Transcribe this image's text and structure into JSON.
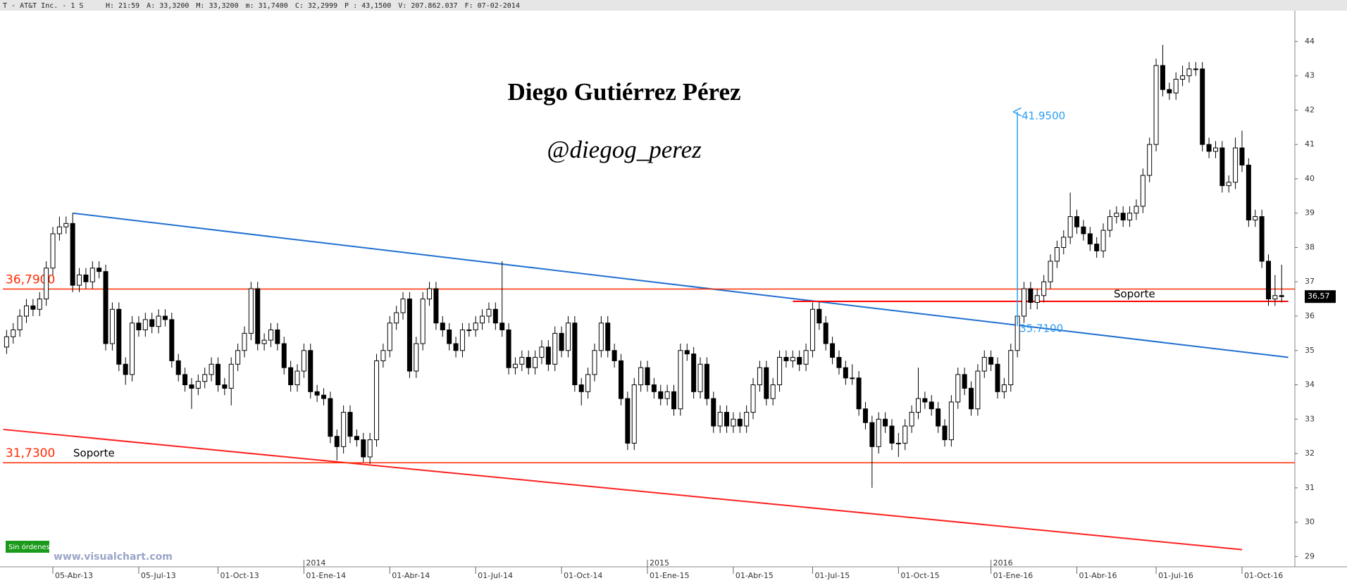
{
  "header": {
    "symbol": "T - AT&T Inc. -  1 S",
    "fields": [
      "H: 21:59",
      "A: 33,3200",
      "M: 33,3200",
      "m: 31,7400",
      "C: 32,2999",
      "P : 43,1500",
      "V: 207.862.037",
      "F: 07-02-2014"
    ]
  },
  "chart_data": {
    "type": "candlestick",
    "title": "Diego Gutiérrez Pérez",
    "subtitle": "@diegog_perez",
    "ylim": [
      28.7,
      44.9
    ],
    "yticks": [
      29,
      30,
      31,
      32,
      33,
      34,
      35,
      36,
      37,
      38,
      39,
      40,
      41,
      42,
      43,
      44
    ],
    "xlim": [
      -1,
      195
    ],
    "xticks": [
      {
        "value": 7,
        "label": "05-Abr-13"
      },
      {
        "value": 20,
        "label": "05-Jul-13"
      },
      {
        "value": 32,
        "label": "01-Oct-13"
      },
      {
        "value": 45,
        "label": "01-Ene-14"
      },
      {
        "value": 58,
        "label": "01-Abr-14"
      },
      {
        "value": 71,
        "label": "01-Jul-14"
      },
      {
        "value": 84,
        "label": "01-Oct-14"
      },
      {
        "value": 97,
        "label": "01-Ene-15"
      },
      {
        "value": 110,
        "label": "01-Abr-15"
      },
      {
        "value": 122,
        "label": "01-Jul-15"
      },
      {
        "value": 135,
        "label": "01-Oct-15"
      },
      {
        "value": 149,
        "label": "01-Ene-16"
      },
      {
        "value": 162,
        "label": "01-Abr-16"
      },
      {
        "value": 174,
        "label": "01-Jul-16"
      },
      {
        "value": 187,
        "label": "01-Oct-16"
      }
    ],
    "year_ticks": [
      {
        "value": 45,
        "label": "2014"
      },
      {
        "value": 97,
        "label": "2015"
      },
      {
        "value": 149,
        "label": "2016"
      }
    ],
    "up_color": "#ffffff",
    "down_color": "#000000",
    "candles": [
      [
        35.1,
        35.6,
        34.9,
        35.4
      ],
      [
        35.4,
        35.8,
        35.2,
        35.6
      ],
      [
        35.6,
        36.2,
        35.4,
        36.0
      ],
      [
        36.0,
        36.5,
        35.8,
        36.3
      ],
      [
        36.3,
        36.5,
        36.0,
        36.2
      ],
      [
        36.2,
        36.7,
        36.0,
        36.5
      ],
      [
        36.5,
        37.6,
        36.3,
        37.4
      ],
      [
        37.4,
        38.6,
        37.2,
        38.4
      ],
      [
        38.4,
        38.9,
        38.2,
        38.6
      ],
      [
        38.6,
        38.9,
        38.4,
        38.7
      ],
      [
        38.7,
        39.0,
        36.7,
        36.9
      ],
      [
        36.9,
        37.4,
        36.7,
        37.2
      ],
      [
        37.2,
        37.4,
        36.8,
        37.0
      ],
      [
        37.0,
        37.6,
        36.8,
        37.4
      ],
      [
        37.4,
        37.6,
        37.1,
        37.3
      ],
      [
        37.3,
        37.5,
        35.0,
        35.2
      ],
      [
        35.2,
        36.4,
        35.0,
        36.2
      ],
      [
        36.2,
        36.4,
        34.4,
        34.6
      ],
      [
        34.6,
        34.8,
        34.0,
        34.3
      ],
      [
        34.3,
        36.0,
        34.1,
        35.8
      ],
      [
        35.8,
        36.0,
        35.4,
        35.6
      ],
      [
        35.6,
        36.1,
        35.4,
        35.9
      ],
      [
        35.9,
        36.1,
        35.5,
        35.7
      ],
      [
        35.7,
        36.2,
        35.5,
        36.0
      ],
      [
        36.0,
        36.2,
        35.7,
        35.9
      ],
      [
        35.9,
        36.1,
        34.5,
        34.7
      ],
      [
        34.7,
        34.9,
        34.1,
        34.3
      ],
      [
        34.3,
        34.5,
        33.8,
        34.0
      ],
      [
        34.0,
        34.2,
        33.3,
        33.9
      ],
      [
        33.9,
        34.3,
        33.7,
        34.1
      ],
      [
        34.1,
        34.5,
        33.9,
        34.3
      ],
      [
        34.3,
        34.8,
        34.1,
        34.6
      ],
      [
        34.6,
        34.8,
        33.8,
        34.0
      ],
      [
        34.0,
        34.2,
        33.7,
        33.9
      ],
      [
        33.9,
        34.8,
        33.4,
        34.6
      ],
      [
        34.6,
        35.2,
        34.4,
        35.0
      ],
      [
        35.0,
        35.7,
        34.8,
        35.5
      ],
      [
        35.5,
        37.0,
        35.3,
        36.8
      ],
      [
        36.8,
        37.0,
        35.0,
        35.2
      ],
      [
        35.2,
        35.5,
        35.0,
        35.3
      ],
      [
        35.3,
        35.8,
        35.1,
        35.6
      ],
      [
        35.6,
        35.8,
        35.0,
        35.2
      ],
      [
        35.2,
        35.4,
        34.3,
        34.5
      ],
      [
        34.5,
        34.7,
        33.8,
        34.0
      ],
      [
        34.0,
        34.6,
        33.8,
        34.4
      ],
      [
        34.4,
        35.2,
        34.2,
        35.0
      ],
      [
        35.0,
        35.2,
        33.6,
        33.8
      ],
      [
        33.8,
        34.0,
        33.5,
        33.7
      ],
      [
        33.7,
        33.9,
        33.4,
        33.6
      ],
      [
        33.6,
        33.8,
        32.3,
        32.5
      ],
      [
        32.5,
        32.7,
        31.8,
        32.2
      ],
      [
        32.2,
        33.4,
        32.0,
        33.2
      ],
      [
        33.2,
        33.4,
        32.3,
        32.5
      ],
      [
        32.5,
        32.7,
        32.2,
        32.4
      ],
      [
        32.4,
        32.6,
        31.75,
        31.9
      ],
      [
        31.9,
        32.6,
        31.7,
        32.4
      ],
      [
        32.4,
        34.9,
        32.2,
        34.7
      ],
      [
        34.7,
        35.2,
        34.5,
        35.0
      ],
      [
        35.0,
        36.0,
        34.8,
        35.8
      ],
      [
        35.8,
        36.3,
        35.6,
        36.1
      ],
      [
        36.1,
        36.7,
        35.9,
        36.5
      ],
      [
        36.5,
        36.7,
        34.2,
        34.4
      ],
      [
        34.4,
        35.4,
        34.2,
        35.2
      ],
      [
        35.2,
        36.7,
        35.0,
        36.5
      ],
      [
        36.5,
        37.0,
        36.3,
        36.8
      ],
      [
        36.8,
        37.0,
        35.6,
        35.8
      ],
      [
        35.8,
        36.0,
        35.4,
        35.6
      ],
      [
        35.6,
        35.8,
        35.0,
        35.2
      ],
      [
        35.2,
        35.4,
        34.8,
        35.0
      ],
      [
        35.0,
        35.8,
        34.8,
        35.6
      ],
      [
        35.6,
        35.8,
        35.4,
        35.6
      ],
      [
        35.6,
        36.0,
        35.4,
        35.8
      ],
      [
        35.8,
        36.2,
        35.6,
        36.0
      ],
      [
        36.0,
        36.4,
        35.8,
        36.2
      ],
      [
        36.2,
        36.4,
        35.6,
        35.8
      ],
      [
        35.8,
        37.6,
        35.4,
        35.6
      ],
      [
        35.6,
        35.8,
        34.3,
        34.5
      ],
      [
        34.5,
        34.8,
        34.3,
        34.6
      ],
      [
        34.6,
        35.0,
        34.4,
        34.8
      ],
      [
        34.8,
        35.0,
        34.3,
        34.5
      ],
      [
        34.5,
        35.0,
        34.3,
        34.8
      ],
      [
        34.8,
        35.3,
        34.6,
        35.1
      ],
      [
        35.1,
        35.3,
        34.4,
        34.6
      ],
      [
        34.6,
        35.7,
        34.4,
        35.5
      ],
      [
        35.5,
        35.7,
        34.8,
        35.0
      ],
      [
        35.0,
        36.0,
        34.8,
        35.8
      ],
      [
        35.8,
        36.0,
        33.8,
        34.0
      ],
      [
        34.0,
        34.2,
        33.4,
        33.8
      ],
      [
        33.8,
        34.5,
        33.6,
        34.3
      ],
      [
        34.3,
        35.2,
        34.1,
        35.0
      ],
      [
        35.0,
        36.0,
        34.8,
        35.8
      ],
      [
        35.8,
        36.0,
        34.8,
        35.0
      ],
      [
        35.0,
        35.2,
        34.5,
        34.7
      ],
      [
        34.7,
        34.9,
        33.4,
        33.6
      ],
      [
        33.6,
        33.8,
        32.1,
        32.3
      ],
      [
        32.3,
        34.2,
        32.1,
        34.0
      ],
      [
        34.0,
        34.7,
        33.8,
        34.5
      ],
      [
        34.5,
        34.7,
        33.8,
        34.0
      ],
      [
        34.0,
        34.2,
        33.6,
        33.8
      ],
      [
        33.8,
        34.0,
        33.4,
        33.6
      ],
      [
        33.6,
        34.0,
        33.4,
        33.8
      ],
      [
        33.8,
        34.0,
        33.1,
        33.3
      ],
      [
        33.3,
        35.2,
        33.1,
        35.0
      ],
      [
        35.0,
        35.2,
        34.7,
        34.9
      ],
      [
        34.9,
        35.1,
        33.6,
        33.8
      ],
      [
        33.8,
        34.8,
        33.6,
        34.6
      ],
      [
        34.6,
        34.8,
        33.4,
        33.6
      ],
      [
        33.6,
        33.8,
        32.6,
        32.8
      ],
      [
        32.8,
        33.4,
        32.6,
        33.2
      ],
      [
        33.2,
        33.4,
        32.6,
        32.8
      ],
      [
        32.8,
        33.2,
        32.6,
        33.0
      ],
      [
        33.0,
        33.2,
        32.6,
        32.8
      ],
      [
        32.8,
        33.4,
        32.6,
        33.2
      ],
      [
        33.2,
        34.2,
        33.0,
        34.0
      ],
      [
        34.0,
        34.7,
        33.8,
        34.5
      ],
      [
        34.5,
        34.7,
        33.4,
        33.6
      ],
      [
        33.6,
        34.2,
        33.4,
        34.0
      ],
      [
        34.0,
        35.0,
        33.8,
        34.8
      ],
      [
        34.8,
        35.0,
        34.5,
        34.7
      ],
      [
        34.7,
        35.0,
        34.5,
        34.8
      ],
      [
        34.8,
        35.0,
        34.4,
        34.6
      ],
      [
        34.6,
        35.2,
        34.4,
        35.0
      ],
      [
        35.0,
        36.4,
        34.8,
        36.2
      ],
      [
        36.2,
        36.4,
        35.6,
        35.8
      ],
      [
        35.8,
        36.0,
        35.0,
        35.2
      ],
      [
        35.2,
        35.4,
        34.6,
        34.8
      ],
      [
        34.8,
        35.0,
        34.3,
        34.5
      ],
      [
        34.5,
        34.7,
        34.0,
        34.2
      ],
      [
        34.2,
        34.6,
        34.0,
        34.2
      ],
      [
        34.2,
        34.4,
        33.1,
        33.3
      ],
      [
        33.3,
        33.5,
        32.7,
        32.9
      ],
      [
        32.9,
        33.1,
        31.0,
        32.2
      ],
      [
        32.2,
        33.2,
        32.0,
        33.0
      ],
      [
        33.0,
        33.2,
        32.6,
        32.8
      ],
      [
        32.8,
        33.0,
        32.1,
        32.3
      ],
      [
        32.3,
        32.6,
        31.9,
        32.3
      ],
      [
        32.3,
        33.0,
        32.1,
        32.8
      ],
      [
        32.8,
        33.4,
        32.6,
        33.2
      ],
      [
        33.2,
        34.5,
        33.0,
        33.6
      ],
      [
        33.6,
        33.8,
        33.3,
        33.5
      ],
      [
        33.5,
        33.7,
        33.1,
        33.3
      ],
      [
        33.3,
        33.5,
        32.6,
        32.8
      ],
      [
        32.8,
        33.0,
        32.2,
        32.4
      ],
      [
        32.4,
        33.7,
        32.2,
        33.5
      ],
      [
        33.5,
        34.5,
        33.3,
        34.3
      ],
      [
        34.3,
        34.5,
        33.7,
        33.9
      ],
      [
        33.9,
        34.1,
        33.1,
        33.3
      ],
      [
        33.3,
        34.6,
        33.1,
        34.4
      ],
      [
        34.4,
        35.0,
        34.2,
        34.8
      ],
      [
        34.8,
        35.0,
        34.4,
        34.6
      ],
      [
        34.6,
        34.8,
        33.6,
        33.8
      ],
      [
        33.8,
        34.2,
        33.6,
        34.0
      ],
      [
        34.0,
        35.2,
        33.8,
        35.0
      ],
      [
        35.0,
        36.4,
        34.8,
        36.0
      ],
      [
        36.0,
        37.0,
        35.8,
        36.8
      ],
      [
        36.8,
        37.0,
        36.2,
        36.4
      ],
      [
        36.4,
        36.8,
        36.2,
        36.6
      ],
      [
        36.6,
        37.2,
        36.4,
        37.0
      ],
      [
        37.0,
        37.8,
        36.8,
        37.6
      ],
      [
        37.6,
        38.2,
        37.4,
        38.0
      ],
      [
        38.0,
        38.5,
        37.8,
        38.3
      ],
      [
        38.3,
        39.6,
        38.1,
        38.9
      ],
      [
        38.9,
        39.1,
        38.4,
        38.6
      ],
      [
        38.6,
        38.8,
        38.2,
        38.4
      ],
      [
        38.4,
        38.6,
        37.9,
        38.1
      ],
      [
        38.1,
        38.3,
        37.7,
        37.9
      ],
      [
        37.9,
        38.7,
        37.7,
        38.5
      ],
      [
        38.5,
        39.1,
        38.3,
        38.9
      ],
      [
        38.9,
        39.2,
        38.7,
        39.0
      ],
      [
        39.0,
        39.2,
        38.6,
        38.8
      ],
      [
        38.8,
        39.2,
        38.6,
        39.0
      ],
      [
        39.0,
        39.4,
        38.8,
        39.2
      ],
      [
        39.2,
        40.3,
        39.0,
        40.1
      ],
      [
        40.1,
        41.2,
        39.9,
        41.0
      ],
      [
        41.0,
        43.5,
        40.8,
        43.3
      ],
      [
        43.3,
        43.9,
        42.4,
        42.6
      ],
      [
        42.6,
        42.8,
        42.3,
        42.5
      ],
      [
        42.5,
        43.1,
        42.3,
        42.9
      ],
      [
        42.9,
        43.3,
        42.7,
        43.0
      ],
      [
        43.0,
        43.4,
        42.8,
        43.2
      ],
      [
        43.2,
        43.4,
        43.0,
        43.2
      ],
      [
        43.2,
        43.4,
        40.8,
        41.0
      ],
      [
        41.0,
        41.2,
        40.6,
        40.8
      ],
      [
        40.8,
        41.1,
        40.6,
        40.9
      ],
      [
        40.9,
        41.1,
        39.6,
        39.8
      ],
      [
        39.8,
        40.1,
        39.6,
        39.9
      ],
      [
        39.9,
        41.2,
        39.7,
        40.9
      ],
      [
        40.9,
        41.4,
        40.2,
        40.4
      ],
      [
        40.4,
        40.6,
        38.6,
        38.8
      ],
      [
        38.8,
        39.1,
        38.6,
        38.9
      ],
      [
        38.9,
        39.1,
        37.4,
        37.6
      ],
      [
        37.6,
        37.8,
        36.3,
        36.5
      ],
      [
        36.5,
        37.2,
        36.3,
        36.6
      ],
      [
        36.6,
        37.5,
        36.4,
        36.57
      ]
    ],
    "hlines": [
      {
        "value": 36.79,
        "label": "36,7900",
        "color": "#ff2a00"
      },
      {
        "value": 31.73,
        "label": "31,7300",
        "note": "Soporte",
        "color": "#ff2a00"
      }
    ],
    "support_segment": {
      "value": 36.43,
      "start": 119,
      "end": 194,
      "label": "Soporte",
      "color": "#ff0000"
    },
    "trendlines": [
      {
        "start": [
          10,
          39.0
        ],
        "end": [
          194,
          34.8
        ],
        "color": "#1f6fd1"
      },
      {
        "start": [
          -0.5,
          32.7
        ],
        "end": [
          187,
          29.2
        ],
        "color": "#ff2020"
      }
    ],
    "arrow": {
      "x": 153,
      "from": 35.71,
      "to": 41.95,
      "from_label": "35.7100",
      "to_label": "41.9500",
      "color": "#2a9df4"
    },
    "last_price": {
      "value": 36.57,
      "label": "36,57"
    }
  },
  "footer": {
    "status": "Sin órdenes",
    "site": "www.visualchart.com"
  }
}
